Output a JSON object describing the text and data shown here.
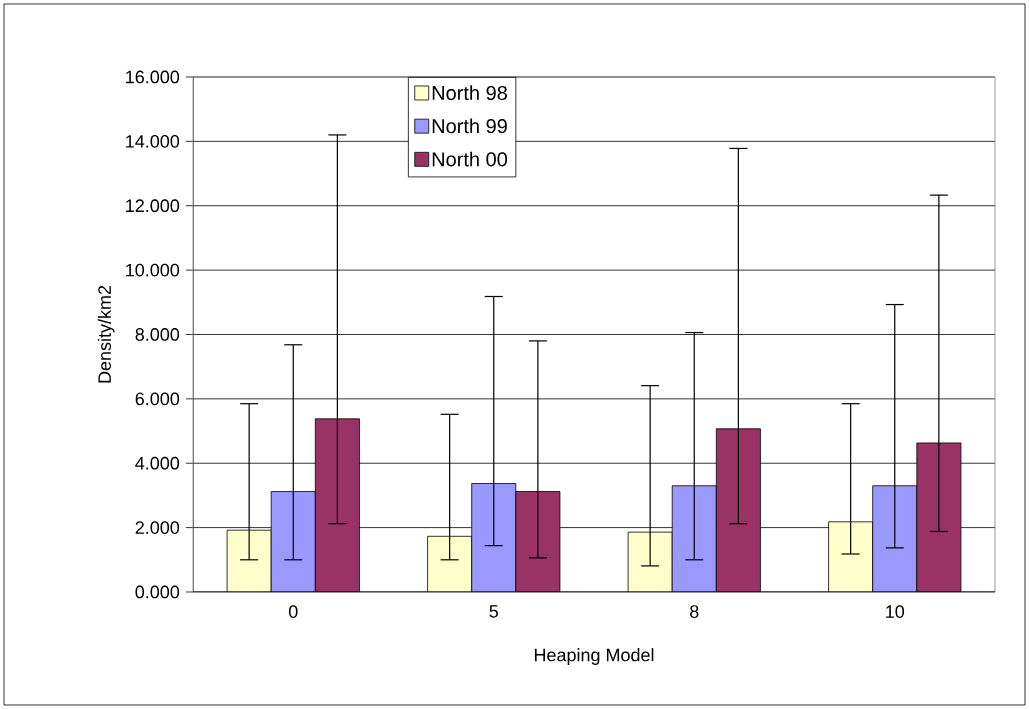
{
  "chart_data": {
    "type": "bar",
    "xlabel": "Heaping Model",
    "ylabel": "Density/km2",
    "categories": [
      "0",
      "5",
      "8",
      "10"
    ],
    "series": [
      {
        "name": "North 98",
        "color": "#ffffcc",
        "values": [
          1.92,
          1.73,
          1.86,
          2.18
        ],
        "errors": [
          [
            1.0,
            5.85
          ],
          [
            1.0,
            5.52
          ],
          [
            0.81,
            6.41
          ],
          [
            1.18,
            5.85
          ]
        ]
      },
      {
        "name": "North 99",
        "color": "#9999ff",
        "values": [
          3.12,
          3.37,
          3.3,
          3.3
        ],
        "errors": [
          [
            1.0,
            7.68
          ],
          [
            1.44,
            9.18
          ],
          [
            1.0,
            8.06
          ],
          [
            1.37,
            8.93
          ]
        ]
      },
      {
        "name": "North 00",
        "color": "#993366",
        "values": [
          5.38,
          3.12,
          5.07,
          4.63
        ],
        "errors": [
          [
            2.12,
            14.2
          ],
          [
            1.06,
            7.8
          ],
          [
            2.12,
            13.78
          ],
          [
            1.88,
            12.33
          ]
        ]
      }
    ],
    "ylim": [
      0,
      16
    ],
    "yticks": [
      {
        "value": 0,
        "label": "0.000"
      },
      {
        "value": 2,
        "label": "2.000"
      },
      {
        "value": 4,
        "label": "4.000"
      },
      {
        "value": 6,
        "label": "6.000"
      },
      {
        "value": 8,
        "label": "8.000"
      },
      {
        "value": 10,
        "label": "10.000"
      },
      {
        "value": 12,
        "label": "12.000"
      },
      {
        "value": 14,
        "label": "14.000"
      },
      {
        "value": 16,
        "label": "16.000"
      }
    ],
    "grid": "y",
    "legend": "top"
  }
}
